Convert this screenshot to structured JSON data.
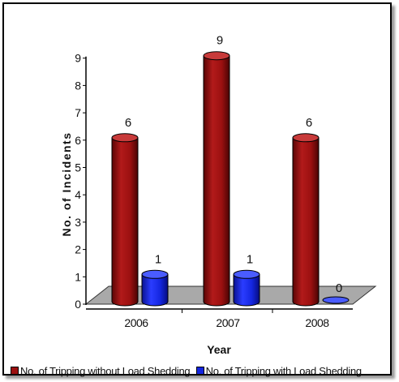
{
  "chart_data": {
    "type": "bar",
    "categories": [
      "2006",
      "2007",
      "2008"
    ],
    "series": [
      {
        "name": "No. of Tripping without Load Shedding",
        "values": [
          6,
          9,
          6
        ],
        "color": "#9b1010"
      },
      {
        "name": "No. of Tripping with Load Shedding",
        "values": [
          1,
          1,
          0
        ],
        "color": "#1426e0"
      }
    ],
    "title": "",
    "xlabel": "Year",
    "ylabel": "No. of Incidents",
    "ylim": [
      0,
      9
    ],
    "yticks": [
      "0",
      "1",
      "2",
      "3",
      "4",
      "5",
      "6",
      "7",
      "8",
      "9"
    ],
    "data_labels": true,
    "grid": false,
    "three_d": true,
    "legend_position": "bottom",
    "floor_color": "#a9a9a9"
  }
}
